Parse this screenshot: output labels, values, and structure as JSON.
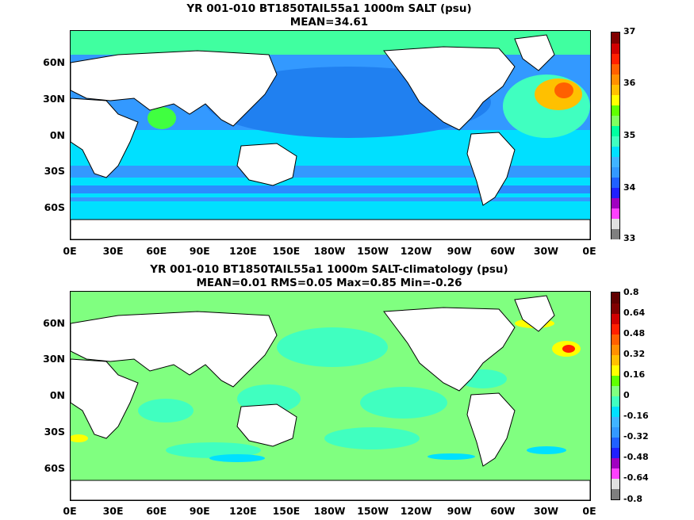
{
  "panel1": {
    "title": "YR 001-010 BT1850TAIL55a1 1000m SALT (psu)",
    "subtitle": "MEAN=34.61",
    "lat_labels": [
      "60N",
      "30N",
      "0N",
      "30S",
      "60S"
    ],
    "lon_labels": [
      "0E",
      "30E",
      "60E",
      "90E",
      "120E",
      "150E",
      "180W",
      "150W",
      "120W",
      "90W",
      "60W",
      "30W",
      "0E"
    ],
    "colorbar_labels": [
      "37",
      "36",
      "35",
      "34",
      "33"
    ],
    "colorbar_colors": [
      "#7f7f7f",
      "#e0e0e0",
      "#ff40ff",
      "#a000c0",
      "#2020ff",
      "#2060ff",
      "#3399ff",
      "#40b4ff",
      "#00e0ff",
      "#40ffc0",
      "#00ffa0",
      "#80ff60",
      "#60ff00",
      "#ffff00",
      "#ffc000",
      "#ff9000",
      "#ff6000",
      "#ff2000",
      "#d00000",
      "#800000"
    ]
  },
  "panel2": {
    "title": "YR 001-010 BT1850TAIL55a1 1000m SALT-climatology (psu)",
    "subtitle": "MEAN=0.01   RMS=0.05   Max=0.85   Min=-0.26",
    "lat_labels": [
      "60N",
      "30N",
      "0N",
      "30S",
      "60S"
    ],
    "lon_labels": [
      "0E",
      "30E",
      "60E",
      "90E",
      "120E",
      "150E",
      "180W",
      "150W",
      "120W",
      "90W",
      "60W",
      "30W",
      "0E"
    ],
    "colorbar_labels": [
      "0.8",
      "0.64",
      "0.48",
      "0.32",
      "0.16",
      "0",
      "-0.16",
      "-0.32",
      "-0.48",
      "-0.64",
      "-0.8"
    ],
    "colorbar_colors": [
      "#7f7f7f",
      "#e0e0e0",
      "#ff40ff",
      "#a000c0",
      "#2020ff",
      "#2060ff",
      "#3399ff",
      "#40b4ff",
      "#00e0ff",
      "#40ffc0",
      "#80ff80",
      "#60ff00",
      "#ffff00",
      "#ffc000",
      "#ff9000",
      "#ff6000",
      "#ff2000",
      "#d00000",
      "#800000",
      "#600000"
    ]
  }
}
